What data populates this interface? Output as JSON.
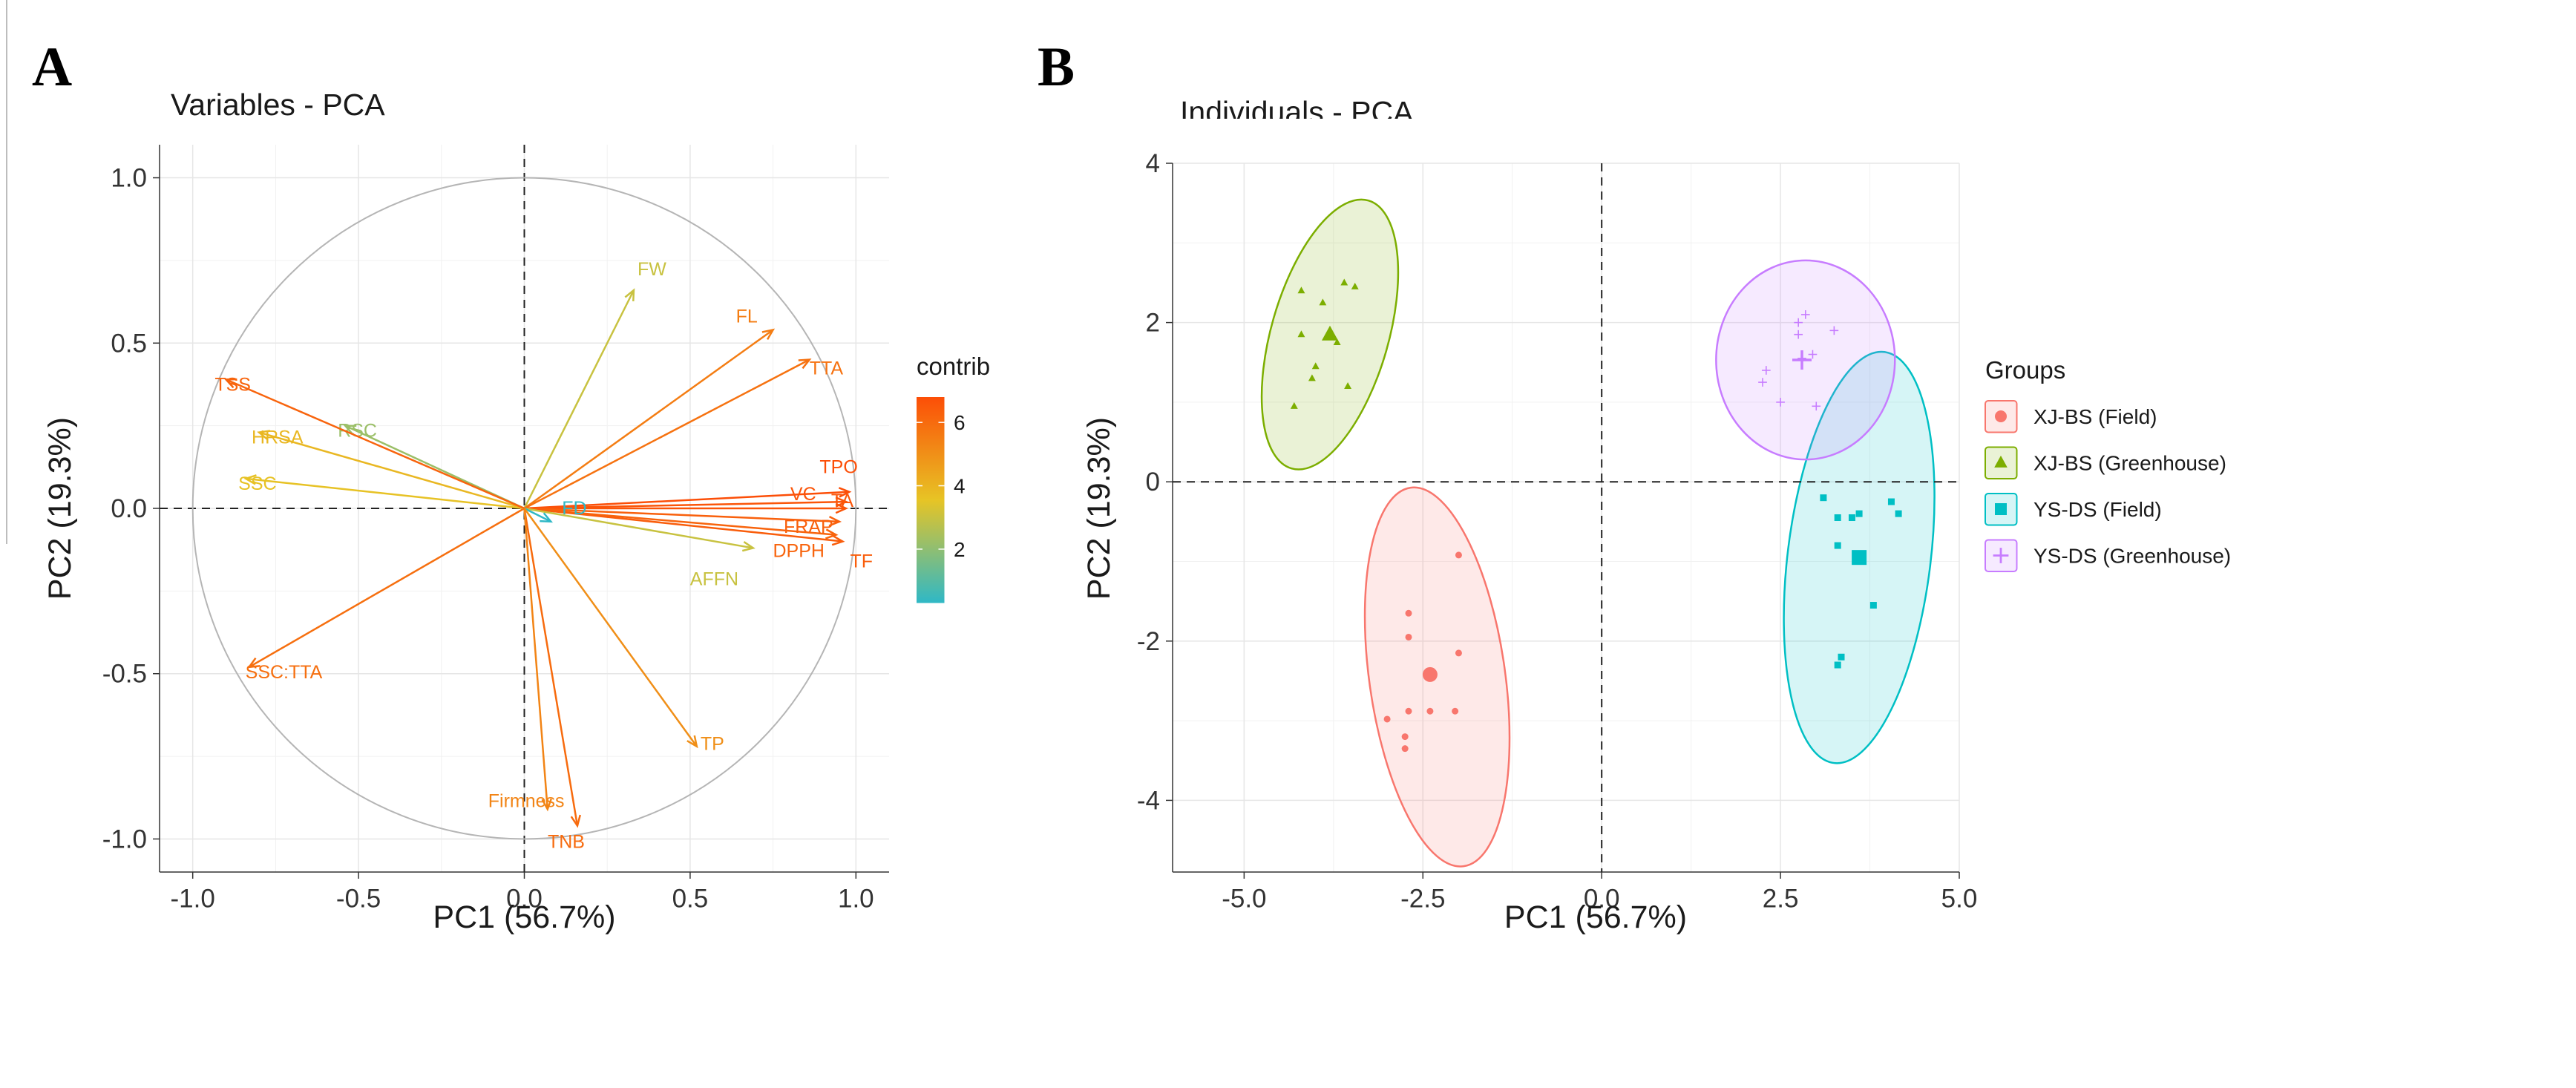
{
  "panel_a": {
    "letter": "A",
    "chart_data": {
      "type": "scatter",
      "title": "Variables - PCA",
      "xlabel": "PC1 (56.7%)",
      "ylabel": "PC2 (19.3%)",
      "xlim": [
        -1.1,
        1.1
      ],
      "ylim": [
        -1.1,
        1.1
      ],
      "x_ticks": [
        -1.0,
        -0.5,
        0.0,
        0.5,
        1.0
      ],
      "x_tick_labels": [
        "-1.0",
        "-0.5",
        "0.0",
        "0.5",
        "1.0"
      ],
      "y_ticks": [
        1.0,
        0.5,
        0.0,
        -0.5,
        -1.0
      ],
      "y_tick_labels": [
        "1.0",
        "0.5",
        "0.0",
        "-0.5",
        "-1.0"
      ],
      "grid": true,
      "unit_circle": true,
      "color_legend": {
        "title": "contrib",
        "min": 0.3,
        "max": 6.8,
        "ticks": [
          6,
          4,
          2
        ],
        "tick_labels": [
          "6",
          "4",
          "2"
        ],
        "colors": [
          "#2fb8c6",
          "#e7c425",
          "#fc4e07"
        ]
      },
      "variables": [
        {
          "name": "FW",
          "pc1": 0.33,
          "pc2": 0.66,
          "contrib": 3.0
        },
        {
          "name": "FL",
          "pc1": 0.75,
          "pc2": 0.54,
          "contrib": 5.5
        },
        {
          "name": "TTA",
          "pc1": 0.86,
          "pc2": 0.45,
          "contrib": 5.8
        },
        {
          "name": "TPO",
          "pc1": 0.98,
          "pc2": 0.05,
          "contrib": 6.8
        },
        {
          "name": "VC",
          "pc1": 0.97,
          "pc2": 0.02,
          "contrib": 6.6
        },
        {
          "name": "TA",
          "pc1": 0.97,
          "pc2": 0.0,
          "contrib": 6.6
        },
        {
          "name": "FRAP",
          "pc1": 0.95,
          "pc2": -0.04,
          "contrib": 6.3
        },
        {
          "name": "DPPH",
          "pc1": 0.94,
          "pc2": -0.08,
          "contrib": 6.2
        },
        {
          "name": "TF",
          "pc1": 0.96,
          "pc2": -0.1,
          "contrib": 6.4
        },
        {
          "name": "AFFN",
          "pc1": 0.69,
          "pc2": -0.12,
          "contrib": 3.0
        },
        {
          "name": "FD",
          "pc1": 0.08,
          "pc2": -0.04,
          "contrib": 0.3
        },
        {
          "name": "TP",
          "pc1": 0.52,
          "pc2": -0.72,
          "contrib": 5.0
        },
        {
          "name": "TNB",
          "pc1": 0.16,
          "pc2": -0.96,
          "contrib": 6.0
        },
        {
          "name": "Firmness",
          "pc1": 0.07,
          "pc2": -0.91,
          "contrib": 5.3
        },
        {
          "name": "SSC:TTA",
          "pc1": -0.83,
          "pc2": -0.48,
          "contrib": 5.9
        },
        {
          "name": "SSC",
          "pc1": -0.84,
          "pc2": 0.09,
          "contrib": 3.6
        },
        {
          "name": "HRSA",
          "pc1": -0.8,
          "pc2": 0.23,
          "contrib": 3.9
        },
        {
          "name": "RSC",
          "pc1": -0.54,
          "pc2": 0.25,
          "contrib": 2.2
        },
        {
          "name": "TSS",
          "pc1": -0.9,
          "pc2": 0.39,
          "contrib": 6.2
        }
      ]
    }
  },
  "panel_b": {
    "letter": "B",
    "chart_data": {
      "type": "scatter",
      "title": "Individuals - PCA",
      "xlabel": "PC1 (56.7%)",
      "ylabel": "PC2 (19.3%)",
      "xlim": [
        -6.0,
        5.0
      ],
      "ylim": [
        -4.9,
        4.0
      ],
      "x_ticks": [
        -5.0,
        -2.5,
        0.0,
        2.5,
        5.0
      ],
      "x_tick_labels": [
        "-5.0",
        "-2.5",
        "0.0",
        "2.5",
        "5.0"
      ],
      "y_ticks": [
        4,
        2,
        0,
        -2,
        -4
      ],
      "y_tick_labels": [
        "4",
        "2",
        "0",
        "-2",
        "-4"
      ],
      "grid": true,
      "legend": {
        "title": "Groups",
        "placement": "right"
      },
      "series": [
        {
          "name": "XJ-BS (Field)",
          "color": "#f8766d",
          "shape": "circle",
          "mean": [
            -2.4,
            -2.42
          ],
          "ellipse": {
            "cx": -2.3,
            "cy": -2.45,
            "rx": 0.95,
            "ry": 2.4,
            "angle": -8
          },
          "points": [
            [
              -2.0,
              -0.92
            ],
            [
              -2.7,
              -1.65
            ],
            [
              -2.7,
              -1.95
            ],
            [
              -2.0,
              -2.15
            ],
            [
              -2.4,
              -2.42
            ],
            [
              -3.0,
              -2.98
            ],
            [
              -2.7,
              -2.88
            ],
            [
              -2.4,
              -2.88
            ],
            [
              -2.05,
              -2.88
            ],
            [
              -2.75,
              -3.2
            ],
            [
              -2.75,
              -3.35
            ]
          ]
        },
        {
          "name": "XJ-BS (Greenhouse)",
          "color": "#7cae00",
          "shape": "triangle",
          "mean": [
            -3.8,
            1.85
          ],
          "ellipse": {
            "cx": -3.8,
            "cy": 1.85,
            "rx": 0.82,
            "ry": 1.75,
            "angle": 16
          },
          "points": [
            [
              -4.2,
              2.4
            ],
            [
              -3.6,
              2.5
            ],
            [
              -3.45,
              2.45
            ],
            [
              -3.9,
              2.25
            ],
            [
              -4.2,
              1.85
            ],
            [
              -3.8,
              1.85
            ],
            [
              -3.7,
              1.75
            ],
            [
              -4.0,
              1.45
            ],
            [
              -3.55,
              1.2
            ],
            [
              -4.05,
              1.3
            ],
            [
              -4.3,
              0.95
            ]
          ]
        },
        {
          "name": "YS-DS (Field)",
          "color": "#00bfc4",
          "shape": "square",
          "mean": [
            3.6,
            -0.95
          ],
          "ellipse": {
            "cx": 3.6,
            "cy": -0.95,
            "rx": 1.0,
            "ry": 2.6,
            "angle": 7
          },
          "points": [
            [
              3.1,
              -0.2
            ],
            [
              3.3,
              -0.45
            ],
            [
              4.05,
              -0.25
            ],
            [
              4.15,
              -0.4
            ],
            [
              3.6,
              -0.4
            ],
            [
              3.5,
              -0.45
            ],
            [
              3.3,
              -0.8
            ],
            [
              3.6,
              -0.95
            ],
            [
              3.8,
              -1.55
            ],
            [
              3.35,
              -2.2
            ],
            [
              3.3,
              -2.3
            ]
          ]
        },
        {
          "name": "YS-DS (Greenhouse)",
          "color": "#c77cff",
          "shape": "cross",
          "mean": [
            2.8,
            1.53
          ],
          "ellipse": {
            "cx": 2.85,
            "cy": 1.53,
            "rx": 1.25,
            "ry": 1.25,
            "angle": 0
          },
          "points": [
            [
              2.85,
              2.1
            ],
            [
              2.75,
              2.0
            ],
            [
              3.25,
              1.9
            ],
            [
              2.75,
              1.85
            ],
            [
              2.95,
              1.6
            ],
            [
              2.8,
              1.55
            ],
            [
              2.3,
              1.4
            ],
            [
              2.25,
              1.25
            ],
            [
              2.5,
              1.0
            ],
            [
              3.0,
              0.95
            ]
          ]
        }
      ]
    }
  }
}
